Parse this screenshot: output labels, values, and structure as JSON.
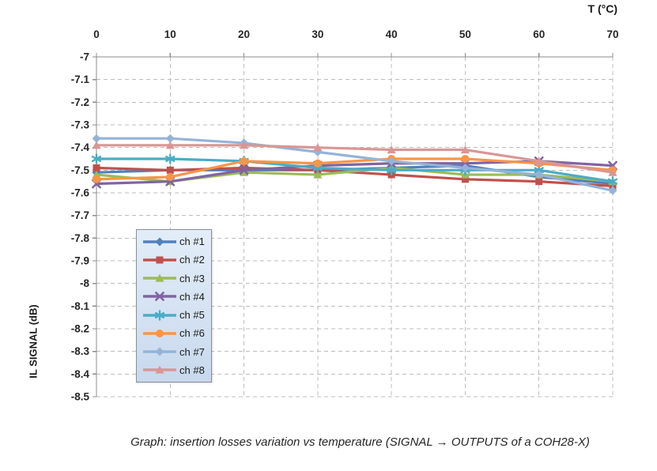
{
  "chart": {
    "x_axis_title": "T (°C)",
    "y_axis_title": "IL SIGNAL (dB)",
    "caption": "Graph: insertion losses variation vs temperature (SIGNAL → OUTPUTS of a COH28-X)"
  },
  "chart_data": {
    "type": "line",
    "title": "",
    "xlabel": "T (°C)",
    "ylabel": "IL SIGNAL (dB)",
    "x": [
      0,
      10,
      20,
      30,
      40,
      50,
      60,
      70
    ],
    "x_tick_labels": [
      "0",
      "10",
      "20",
      "30",
      "40",
      "50",
      "60",
      "70"
    ],
    "y_ticks": [
      -7,
      -7.1,
      -7.2,
      -7.3,
      -7.4,
      -7.5,
      -7.6,
      -7.7,
      -7.8,
      -7.9,
      -8,
      -8.1,
      -8.2,
      -8.3,
      -8.4,
      -8.5
    ],
    "y_tick_labels": [
      "-7",
      "-7.1",
      "-7.2",
      "-7.3",
      "-7.4",
      "-7.5",
      "-7.6",
      "-7.7",
      "-7.8",
      "-7.9",
      "-8",
      "-8.1",
      "-8.2",
      "-8.3",
      "-8.4",
      "-8.5"
    ],
    "xlim": [
      0,
      70
    ],
    "ylim": [
      -8.5,
      -7
    ],
    "grid": true,
    "legend_position": "inside-left",
    "series": [
      {
        "name": "ch #1",
        "color": "#4F81BD",
        "marker": "diamond",
        "values": [
          -7.51,
          -7.5,
          -7.5,
          -7.5,
          -7.49,
          -7.48,
          -7.53,
          -7.56
        ]
      },
      {
        "name": "ch #2",
        "color": "#C0504D",
        "marker": "square",
        "values": [
          -7.49,
          -7.5,
          -7.49,
          -7.5,
          -7.52,
          -7.54,
          -7.55,
          -7.57
        ]
      },
      {
        "name": "ch #3",
        "color": "#9BBB59",
        "marker": "triangle",
        "values": [
          -7.52,
          -7.55,
          -7.51,
          -7.52,
          -7.49,
          -7.52,
          -7.52,
          -7.55
        ]
      },
      {
        "name": "ch #4",
        "color": "#8064A2",
        "marker": "x",
        "values": [
          -7.56,
          -7.55,
          -7.5,
          -7.48,
          -7.47,
          -7.47,
          -7.46,
          -7.48
        ]
      },
      {
        "name": "ch #5",
        "color": "#4BACC6",
        "marker": "asterisk",
        "values": [
          -7.45,
          -7.45,
          -7.46,
          -7.49,
          -7.5,
          -7.5,
          -7.5,
          -7.55
        ]
      },
      {
        "name": "ch #6",
        "color": "#F79646",
        "marker": "circle",
        "values": [
          -7.54,
          -7.53,
          -7.46,
          -7.47,
          -7.45,
          -7.45,
          -7.47,
          -7.5
        ]
      },
      {
        "name": "ch #7",
        "color": "#95B3D7",
        "marker": "diamond",
        "values": [
          -7.36,
          -7.36,
          -7.38,
          -7.42,
          -7.46,
          -7.49,
          -7.52,
          -7.59
        ]
      },
      {
        "name": "ch #8",
        "color": "#D99694",
        "marker": "triangle",
        "values": [
          -7.39,
          -7.39,
          -7.39,
          -7.4,
          -7.41,
          -7.41,
          -7.46,
          -7.51
        ]
      }
    ],
    "colors": {
      "gridline": "#bdbdbd",
      "axis": "#8c8c8c",
      "tick_text": "#262626",
      "legend_bg": "#d4e2f2",
      "legend_border": "#8a8f98"
    }
  }
}
